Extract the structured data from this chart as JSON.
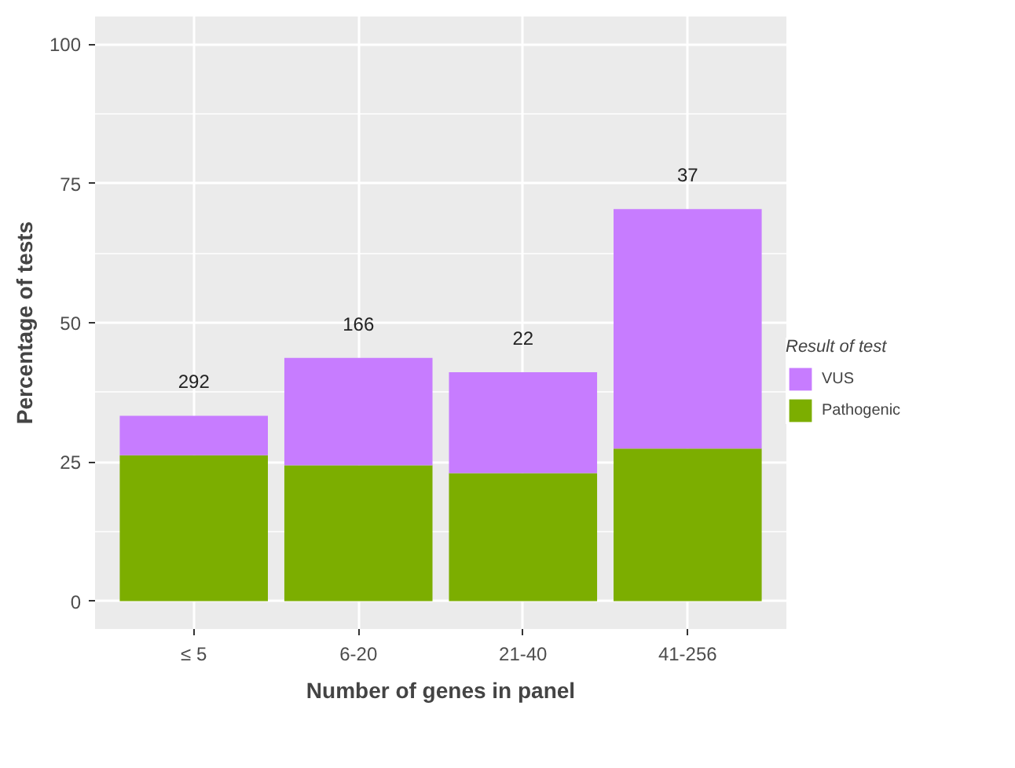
{
  "chart_data": {
    "type": "bar",
    "stacked": true,
    "xlabel": "Number of genes in panel",
    "ylabel": "Percentage of tests",
    "legend_title": "Result of test",
    "legend": "right",
    "grid": true,
    "categories": [
      "≤ 5",
      "6-20",
      "21-40",
      "41-256"
    ],
    "series": [
      {
        "name": "Pathogenic",
        "color": "#7cae00",
        "values": [
          26.2,
          24.4,
          23.0,
          27.4
        ]
      },
      {
        "name": "VUS",
        "color": "#c77cff",
        "values": [
          7.1,
          19.3,
          18.1,
          43.0
        ]
      }
    ],
    "ylim": [
      -5,
      105
    ],
    "yticks": [
      0,
      25,
      50,
      75,
      100
    ],
    "annotations": [
      "292",
      "166",
      "22",
      "37"
    ]
  }
}
